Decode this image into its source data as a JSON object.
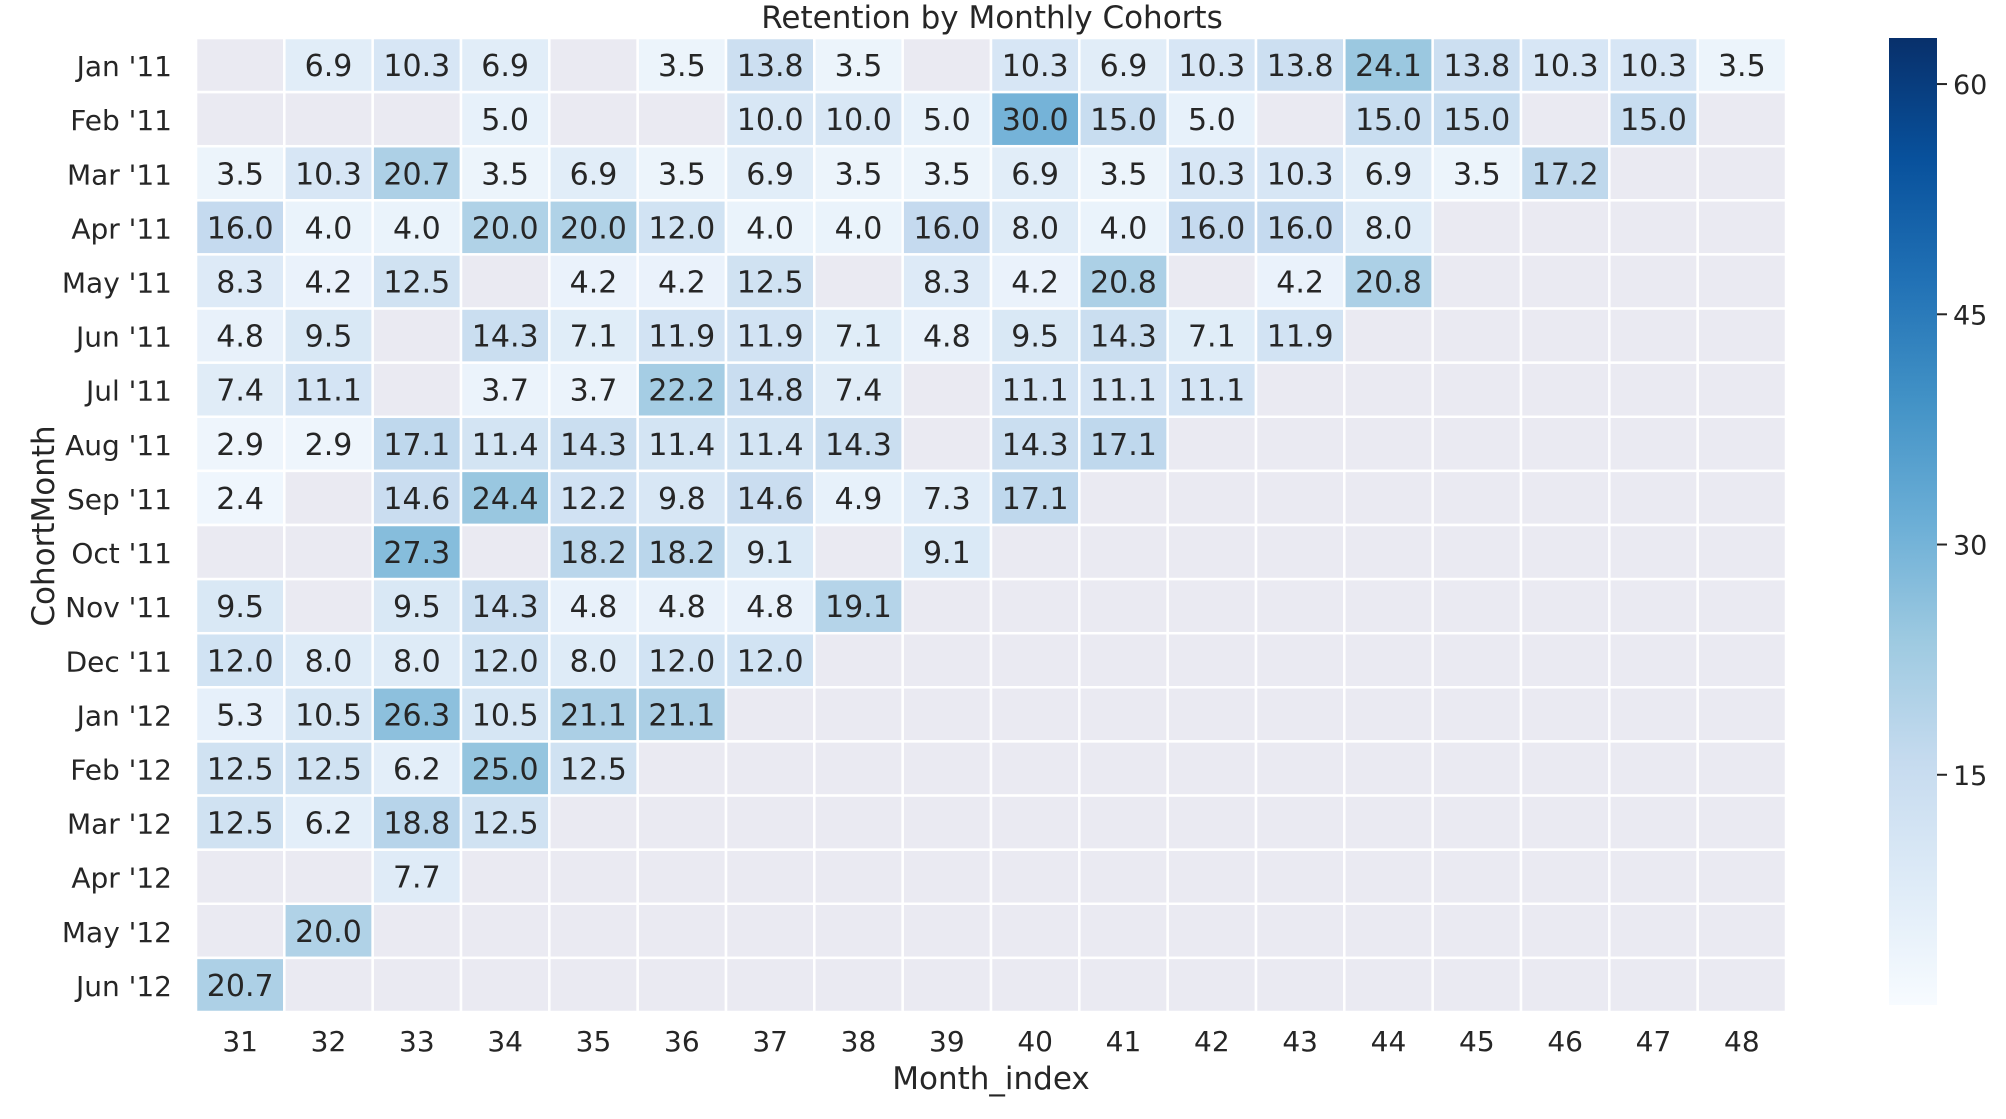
{
  "chart_data": {
    "type": "heatmap",
    "title": "Retention by Monthly Cohorts",
    "xlabel": "Month_index",
    "ylabel": "CohortMonth",
    "x_categories": [
      "31",
      "32",
      "33",
      "34",
      "35",
      "36",
      "37",
      "38",
      "39",
      "40",
      "41",
      "42",
      "43",
      "44",
      "45",
      "46",
      "47",
      "48"
    ],
    "y_categories": [
      "Jan '11",
      "Feb '11",
      "Mar '11",
      "Apr '11",
      "May '11",
      "Jun '11",
      "Jul '11",
      "Aug '11",
      "Sep '11",
      "Oct '11",
      "Nov '11",
      "Dec '11",
      "Jan '12",
      "Feb '12",
      "Mar '12",
      "Apr '12",
      "May '12",
      "Jun '12"
    ],
    "values": [
      [
        null,
        6.9,
        10.3,
        6.9,
        null,
        3.5,
        13.8,
        3.5,
        null,
        10.3,
        6.9,
        10.3,
        13.8,
        24.1,
        13.8,
        10.3,
        10.3,
        3.5
      ],
      [
        null,
        null,
        null,
        5.0,
        null,
        null,
        10.0,
        10.0,
        5.0,
        30.0,
        15.0,
        5.0,
        null,
        15.0,
        15.0,
        null,
        15.0,
        null
      ],
      [
        3.5,
        10.3,
        20.7,
        3.5,
        6.9,
        3.5,
        6.9,
        3.5,
        3.5,
        6.9,
        3.5,
        10.3,
        10.3,
        6.9,
        3.5,
        17.2,
        null,
        null
      ],
      [
        16.0,
        4.0,
        4.0,
        20.0,
        20.0,
        12.0,
        4.0,
        4.0,
        16.0,
        8.0,
        4.0,
        16.0,
        16.0,
        8.0,
        null,
        null,
        null,
        null
      ],
      [
        8.3,
        4.2,
        12.5,
        null,
        4.2,
        4.2,
        12.5,
        null,
        8.3,
        4.2,
        20.8,
        null,
        4.2,
        20.8,
        null,
        null,
        null,
        null
      ],
      [
        4.8,
        9.5,
        null,
        14.3,
        7.1,
        11.9,
        11.9,
        7.1,
        4.8,
        9.5,
        14.3,
        7.1,
        11.9,
        null,
        null,
        null,
        null,
        null
      ],
      [
        7.4,
        11.1,
        null,
        3.7,
        3.7,
        22.2,
        14.8,
        7.4,
        null,
        11.1,
        11.1,
        11.1,
        null,
        null,
        null,
        null,
        null,
        null
      ],
      [
        2.9,
        2.9,
        17.1,
        11.4,
        14.3,
        11.4,
        11.4,
        14.3,
        null,
        14.3,
        17.1,
        null,
        null,
        null,
        null,
        null,
        null,
        null
      ],
      [
        2.4,
        null,
        14.6,
        24.4,
        12.2,
        9.8,
        14.6,
        4.9,
        7.3,
        17.1,
        null,
        null,
        null,
        null,
        null,
        null,
        null,
        null
      ],
      [
        null,
        null,
        27.3,
        null,
        18.2,
        18.2,
        9.1,
        null,
        9.1,
        null,
        null,
        null,
        null,
        null,
        null,
        null,
        null,
        null
      ],
      [
        9.5,
        null,
        9.5,
        14.3,
        4.8,
        4.8,
        4.8,
        19.1,
        null,
        null,
        null,
        null,
        null,
        null,
        null,
        null,
        null,
        null
      ],
      [
        12.0,
        8.0,
        8.0,
        12.0,
        8.0,
        12.0,
        12.0,
        null,
        null,
        null,
        null,
        null,
        null,
        null,
        null,
        null,
        null,
        null
      ],
      [
        5.3,
        10.5,
        26.3,
        10.5,
        21.1,
        21.1,
        null,
        null,
        null,
        null,
        null,
        null,
        null,
        null,
        null,
        null,
        null,
        null
      ],
      [
        12.5,
        12.5,
        6.2,
        25.0,
        12.5,
        null,
        null,
        null,
        null,
        null,
        null,
        null,
        null,
        null,
        null,
        null,
        null,
        null
      ],
      [
        12.5,
        6.2,
        18.8,
        12.5,
        null,
        null,
        null,
        null,
        null,
        null,
        null,
        null,
        null,
        null,
        null,
        null,
        null,
        null
      ],
      [
        null,
        null,
        7.7,
        null,
        null,
        null,
        null,
        null,
        null,
        null,
        null,
        null,
        null,
        null,
        null,
        null,
        null,
        null
      ],
      [
        null,
        20.0,
        null,
        null,
        null,
        null,
        null,
        null,
        null,
        null,
        null,
        null,
        null,
        null,
        null,
        null,
        null,
        null
      ],
      [
        20.7,
        null,
        null,
        null,
        null,
        null,
        null,
        null,
        null,
        null,
        null,
        null,
        null,
        null,
        null,
        null,
        null,
        null
      ]
    ],
    "value_format": "0.0",
    "colorbar": {
      "range": [
        0,
        63
      ],
      "ticks": [
        "15",
        "30",
        "45",
        "60"
      ],
      "colors": [
        "#f7fbff",
        "#deebf7",
        "#c6dbef",
        "#9ecae1",
        "#6baed6",
        "#4292c6",
        "#2171b5",
        "#08519c",
        "#08306b"
      ]
    },
    "missing_color": "#eaeaf2",
    "gridlines": "white",
    "grid": true,
    "legend": "colorbar-right"
  }
}
